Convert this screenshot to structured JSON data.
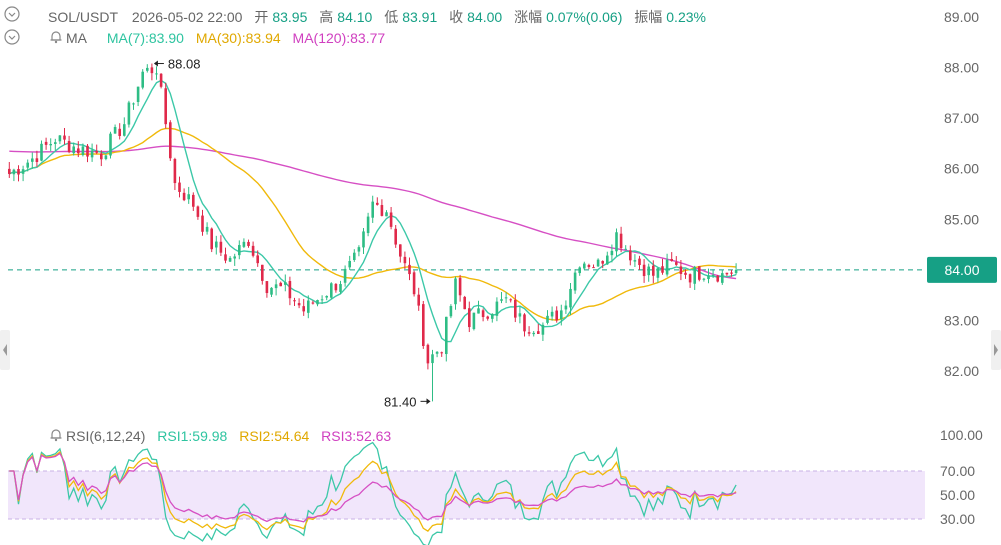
{
  "header": {
    "symbol": "SOL/USDT",
    "datetime": "2026-05-02 22:00",
    "open_label": "开",
    "open": "83.95",
    "high_label": "高",
    "high": "84.10",
    "low_label": "低",
    "low": "83.91",
    "close_label": "收",
    "close": "84.00",
    "change_label": "涨幅",
    "change": "0.07%(0.06)",
    "amp_label": "振幅",
    "amp": "0.23%"
  },
  "ma_legend": {
    "title": "MA",
    "ma7": "MA(7):83.90",
    "ma30": "MA(30):83.94",
    "ma120": "MA(120):83.77"
  },
  "rsi_legend": {
    "title": "RSI(6,12,24)",
    "rsi1": "RSI1:59.98",
    "rsi2": "RSI2:54.64",
    "rsi3": "RSI3:52.63"
  },
  "colors": {
    "up": "#2ebd85",
    "down": "#e0294a",
    "ma7": "#3cc8a8",
    "ma30": "#f0b90b",
    "ma120": "#d64fc4",
    "rsi_band": "#f1e6fb",
    "price_tag": "#16a085",
    "axis_text": "#666666"
  },
  "chart_data": {
    "type": "candlestick",
    "price_axis": {
      "ticks": [
        "89.00",
        "88.00",
        "87.00",
        "86.00",
        "85.00",
        "84.00",
        "83.00",
        "82.00"
      ],
      "range": [
        81.0,
        89.4
      ]
    },
    "current_price": "84.00",
    "high_marker": "88.08",
    "low_marker": "81.40",
    "anchors": [
      [
        0,
        85.9
      ],
      [
        5,
        86.2
      ],
      [
        10,
        86.6
      ],
      [
        15,
        86.4
      ],
      [
        20,
        86.3
      ],
      [
        25,
        86.9
      ],
      [
        29,
        87.9
      ],
      [
        32,
        88.0
      ],
      [
        34,
        86.9
      ],
      [
        36,
        85.7
      ],
      [
        40,
        85.3
      ],
      [
        44,
        84.5
      ],
      [
        48,
        84.2
      ],
      [
        52,
        84.6
      ],
      [
        56,
        83.7
      ],
      [
        60,
        83.6
      ],
      [
        64,
        83.2
      ],
      [
        68,
        83.5
      ],
      [
        72,
        83.8
      ],
      [
        76,
        84.3
      ],
      [
        79,
        85.3
      ],
      [
        82,
        85.2
      ],
      [
        85,
        84.3
      ],
      [
        88,
        83.6
      ],
      [
        91,
        82.2
      ],
      [
        94,
        82.5
      ],
      [
        97,
        83.7
      ],
      [
        100,
        83.0
      ],
      [
        104,
        83.2
      ],
      [
        108,
        83.4
      ],
      [
        112,
        82.9
      ],
      [
        116,
        82.9
      ],
      [
        120,
        83.2
      ],
      [
        124,
        84.2
      ],
      [
        128,
        84.1
      ],
      [
        132,
        84.7
      ],
      [
        136,
        84.2
      ],
      [
        140,
        83.9
      ],
      [
        144,
        84.1
      ],
      [
        148,
        83.9
      ],
      [
        152,
        84.0
      ],
      [
        155,
        83.9
      ],
      [
        158,
        84.0
      ]
    ],
    "high_index": 31,
    "low_index": 92,
    "rsi_axis": {
      "ticks": [
        "100.00",
        "70.00",
        "50.00",
        "30.00"
      ],
      "band": [
        30,
        70
      ]
    },
    "rsi_series": [
      "RSI1",
      "RSI2",
      "RSI3"
    ],
    "grid": false
  }
}
